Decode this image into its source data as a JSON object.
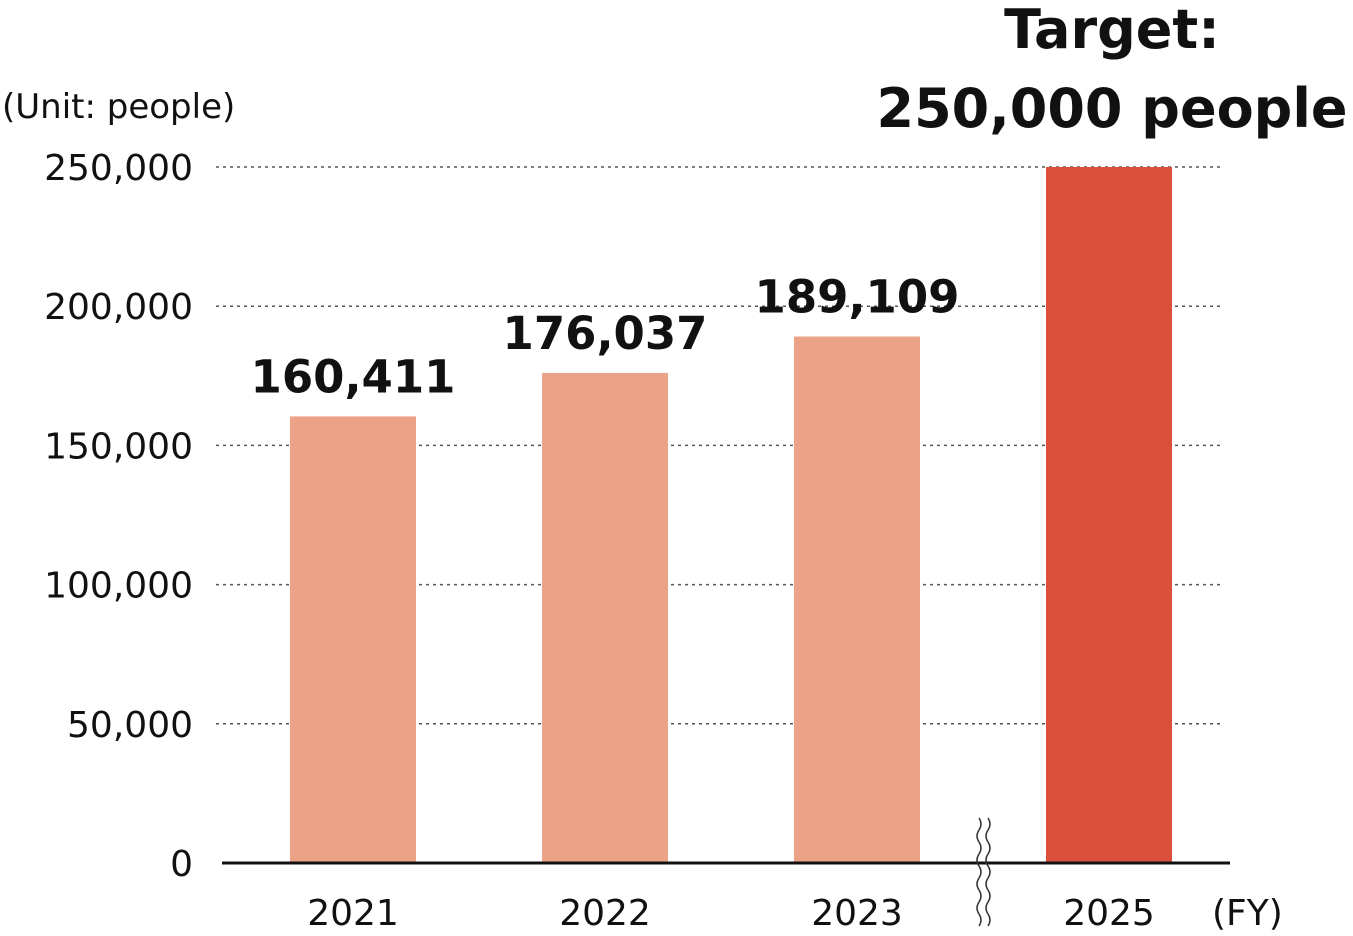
{
  "chart_data": {
    "type": "bar",
    "ylabel": "(Unit: people)",
    "xlabel": "(FY)",
    "categories": [
      "2021",
      "2022",
      "2023",
      "2025"
    ],
    "values": [
      160411,
      176037,
      189109,
      250000
    ],
    "value_labels": [
      "160,411",
      "176,037",
      "189,109",
      ""
    ],
    "colors": [
      "#eba286",
      "#eba286",
      "#eba286",
      "#dc4f3b"
    ],
    "ylim": [
      0,
      250000
    ],
    "yticks": [
      0,
      50000,
      100000,
      150000,
      200000,
      250000
    ],
    "ytick_labels": [
      "0",
      "50,000",
      "100,000",
      "150,000",
      "200,000",
      "250,000"
    ],
    "grid": true,
    "axis_break_between": [
      "2023",
      "2025"
    ],
    "annotation": {
      "line1": "Target:",
      "line2": "250,000 people"
    }
  }
}
